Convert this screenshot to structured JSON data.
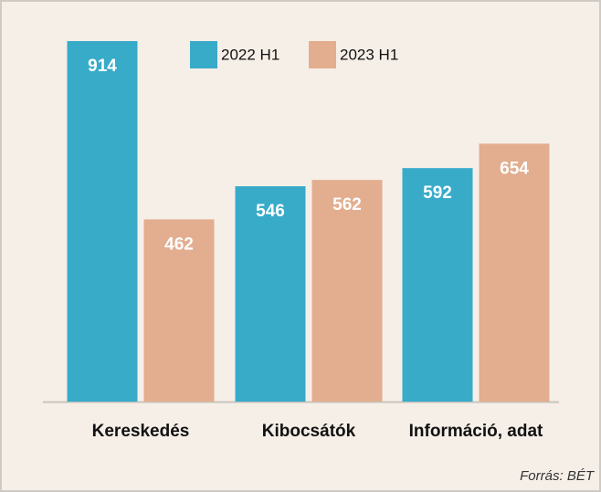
{
  "chart_data": {
    "type": "bar",
    "categories": [
      "Kereskedés",
      "Kibocsátók",
      "Információ, adat"
    ],
    "series": [
      {
        "name": "2022 H1",
        "color": "#38abc9",
        "values": [
          914,
          546,
          592
        ]
      },
      {
        "name": "2023 H1",
        "color": "#e2ae8f",
        "values": [
          462,
          562,
          654
        ]
      }
    ],
    "source": "Forrás: BÉT"
  }
}
